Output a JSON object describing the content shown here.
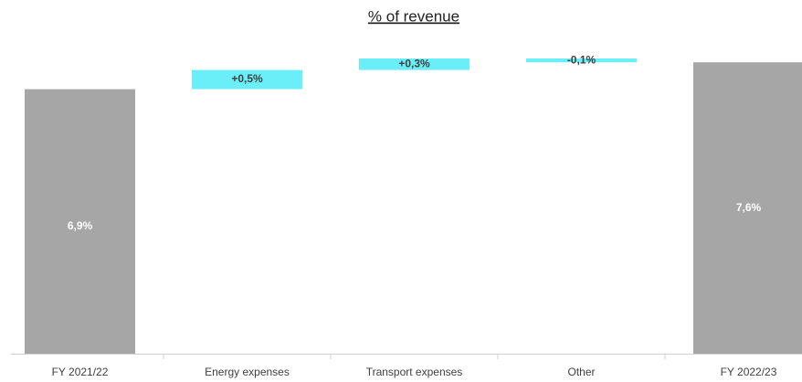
{
  "chart_data": {
    "type": "waterfall",
    "title": "% of revenue",
    "categories": [
      "FY 2021/22",
      "Energy expenses",
      "Transport expenses",
      "Other",
      "FY 2022/23"
    ],
    "values": [
      6.9,
      0.5,
      0.3,
      -0.1,
      7.6
    ],
    "value_labels": [
      "6,9%",
      "+0,5%",
      "+0,3%",
      "-0,1%",
      "7,6%"
    ],
    "colors": [
      "#a6a6a6",
      "#6aeef8",
      "#6aeef8",
      "#6aeef8",
      "#a6a6a6"
    ]
  }
}
